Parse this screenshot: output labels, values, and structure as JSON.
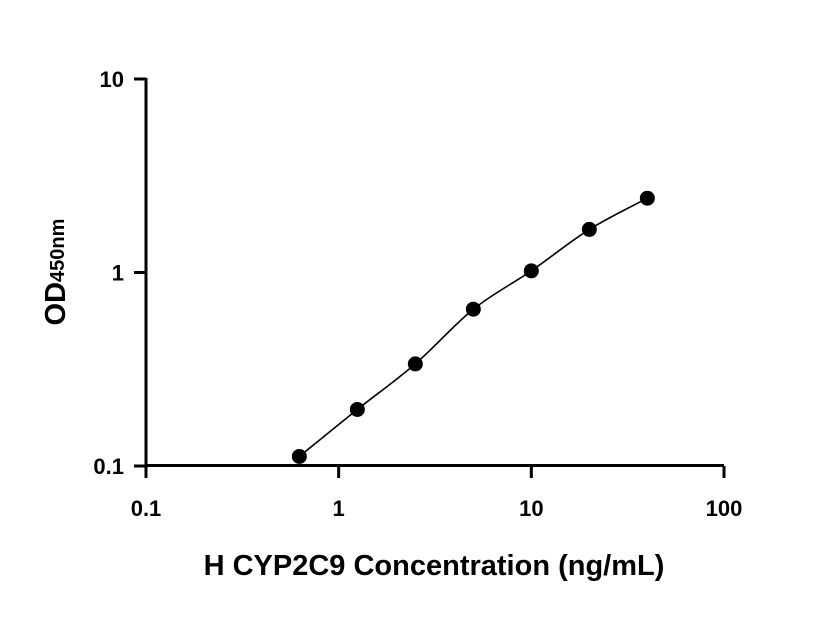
{
  "chart_data": {
    "type": "scatter",
    "title": "",
    "xlabel": "H CYP2C9 Concentration (ng/mL)",
    "ylabel_main": "OD",
    "ylabel_sub": "450nm",
    "x_scale": "log",
    "y_scale": "log",
    "xlim": [
      0.1,
      100
    ],
    "ylim": [
      0.1,
      10
    ],
    "x_ticks": [
      0.1,
      1,
      10,
      100
    ],
    "x_tick_labels": [
      "0.1",
      "1",
      "10",
      "100"
    ],
    "y_ticks": [
      0.1,
      1,
      10
    ],
    "y_tick_labels": [
      "0.1",
      "1",
      "10"
    ],
    "grid": false,
    "legend": "none",
    "series": [
      {
        "x": [
          0.625,
          1.25,
          2.5,
          5,
          10,
          20,
          40
        ],
        "y": [
          0.112,
          0.196,
          0.337,
          0.646,
          1.02,
          1.67,
          2.42
        ],
        "marker": "circle",
        "fit_curve": true
      }
    ],
    "colors": {
      "points": "#000000",
      "axis": "#000000",
      "curve": "#000000"
    }
  }
}
